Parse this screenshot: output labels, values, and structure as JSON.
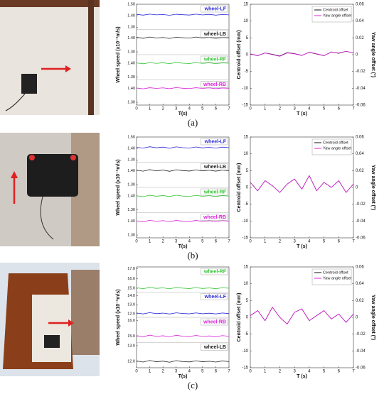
{
  "chart_data": [
    {
      "type": "strip-line",
      "ylabel": "Wheel speed (x10⁻²m/s)",
      "xlabel": "T(s)",
      "xlim": [
        0,
        7
      ],
      "xticks": [
        0,
        1,
        2,
        3,
        4,
        5,
        6,
        7
      ],
      "x": [
        0,
        0.5,
        1,
        1.5,
        2,
        2.5,
        3,
        3.5,
        4,
        4.5,
        5,
        5.5,
        6,
        6.5,
        7
      ],
      "strips": [
        {
          "name": "wheel-LF",
          "color": "#2a2ad8",
          "ylim": [
            1.28,
            1.5
          ],
          "yticks": [
            {
              "value": 1.5,
              "label": "1.50"
            },
            {
              "value": 1.4,
              "label": "1.40"
            },
            {
              "value": 1.3,
              "label": "1.30"
            }
          ],
          "values": [
            1.412,
            1.405,
            1.414,
            1.408,
            1.411,
            1.404,
            1.413,
            1.409,
            1.406,
            1.414,
            1.407,
            1.412,
            1.405,
            1.411,
            1.408
          ]
        },
        {
          "name": "wheel-LB",
          "color": "#222222",
          "ylim": [
            1.28,
            1.46
          ],
          "yticks": [
            {
              "value": 1.4,
              "label": "1.40"
            },
            {
              "value": 1.3,
              "label": "1.30"
            }
          ],
          "values": [
            1.404,
            1.397,
            1.406,
            1.399,
            1.403,
            1.396,
            1.405,
            1.401,
            1.398,
            1.406,
            1.399,
            1.404,
            1.397,
            1.403,
            1.4
          ]
        },
        {
          "name": "wheel-RF",
          "color": "#33c433",
          "ylim": [
            1.28,
            1.46
          ],
          "yticks": [
            {
              "value": 1.4,
              "label": "1.40"
            },
            {
              "value": 1.3,
              "label": "1.30"
            }
          ],
          "values": [
            1.401,
            1.395,
            1.403,
            1.398,
            1.402,
            1.396,
            1.404,
            1.399,
            1.397,
            1.403,
            1.398,
            1.402,
            1.396,
            1.401,
            1.399
          ]
        },
        {
          "name": "wheel-RB",
          "color": "#d822d8",
          "ylim": [
            1.28,
            1.46
          ],
          "yticks": [
            {
              "value": 1.4,
              "label": "1.40"
            },
            {
              "value": 1.3,
              "label": "1.30"
            }
          ],
          "values": [
            1.402,
            1.396,
            1.404,
            1.399,
            1.403,
            1.397,
            1.405,
            1.4,
            1.398,
            1.404,
            1.399,
            1.403,
            1.397,
            1.402,
            1.4
          ]
        }
      ]
    },
    {
      "type": "dual-line",
      "ylabel": "Centroid offset (mm)",
      "y2label": "Yaw angle offset (°)",
      "xlabel": "T (s)",
      "xlim": [
        0,
        7
      ],
      "xticks": [
        0,
        1,
        2,
        3,
        4,
        5,
        6,
        7
      ],
      "ylim": [
        -15,
        15
      ],
      "yticks": [
        -15,
        -10,
        -5,
        0,
        5,
        10,
        15
      ],
      "y2lim": [
        -0.06,
        0.06
      ],
      "y2ticks": [
        -0.06,
        -0.04,
        -0.02,
        0,
        0.02,
        0.04,
        0.06
      ],
      "x": [
        0,
        0.5,
        1,
        1.5,
        2,
        2.5,
        3,
        3.5,
        4,
        4.5,
        5,
        5.5,
        6,
        6.5,
        7
      ],
      "series": [
        {
          "name": "Centroid offset",
          "color": "#111111",
          "values": [
            0.2,
            -0.3,
            0.5,
            0.1,
            -0.4,
            0.6,
            0.3,
            -0.2,
            0.7,
            0.2,
            -0.3,
            0.8,
            0.4,
            1.0,
            0.5
          ]
        },
        {
          "name": "Yaw angle offset",
          "color": "#e020e0",
          "axis": "y2",
          "values": [
            0.001,
            -0.001,
            0.002,
            0,
            -0.002,
            0.002,
            0.001,
            -0.001,
            0.003,
            0.001,
            -0.001,
            0.003,
            0.002,
            0.004,
            0.002
          ]
        }
      ]
    },
    {
      "type": "strip-line",
      "ylabel": "Wheel speed (x10⁻²m/s)",
      "xlabel": "T(s)",
      "xlim": [
        0,
        7
      ],
      "xticks": [
        0,
        1,
        2,
        3,
        4,
        5,
        6,
        7
      ],
      "x": [
        0,
        0.5,
        1,
        1.5,
        2,
        2.5,
        3,
        3.5,
        4,
        4.5,
        5,
        5.5,
        6,
        6.5,
        7
      ],
      "strips": [
        {
          "name": "wheel-LF",
          "color": "#2a2ad8",
          "ylim": [
            1.28,
            1.5
          ],
          "yticks": [
            {
              "value": 1.5,
              "label": "1.50"
            },
            {
              "value": 1.4,
              "label": "1.40"
            },
            {
              "value": 1.3,
              "label": "1.30"
            }
          ],
          "values": [
            1.41,
            1.403,
            1.415,
            1.406,
            1.412,
            1.402,
            1.414,
            1.407,
            1.404,
            1.413,
            1.405,
            1.411,
            1.403,
            1.412,
            1.407
          ]
        },
        {
          "name": "wheel-LB",
          "color": "#222222",
          "ylim": [
            1.28,
            1.46
          ],
          "yticks": [
            {
              "value": 1.4,
              "label": "1.40"
            },
            {
              "value": 1.3,
              "label": "1.30"
            }
          ],
          "values": [
            1.403,
            1.396,
            1.407,
            1.398,
            1.404,
            1.395,
            1.406,
            1.4,
            1.397,
            1.405,
            1.398,
            1.403,
            1.396,
            1.404,
            1.399
          ]
        },
        {
          "name": "wheel-RF",
          "color": "#33c433",
          "ylim": [
            1.28,
            1.46
          ],
          "yticks": [
            {
              "value": 1.4,
              "label": "1.40"
            },
            {
              "value": 1.3,
              "label": "1.30"
            }
          ],
          "values": [
            1.4,
            1.394,
            1.404,
            1.397,
            1.402,
            1.395,
            1.405,
            1.398,
            1.396,
            1.403,
            1.397,
            1.401,
            1.395,
            1.402,
            1.398
          ]
        },
        {
          "name": "wheel-RB",
          "color": "#d822d8",
          "ylim": [
            1.28,
            1.46
          ],
          "yticks": [
            {
              "value": 1.4,
              "label": "1.40"
            },
            {
              "value": 1.3,
              "label": "1.30"
            }
          ],
          "values": [
            1.401,
            1.395,
            1.405,
            1.398,
            1.403,
            1.396,
            1.404,
            1.399,
            1.397,
            1.404,
            1.398,
            1.402,
            1.396,
            1.403,
            1.399
          ]
        }
      ]
    },
    {
      "type": "dual-line",
      "ylabel": "Centroid offset (mm)",
      "y2label": "Yaw angle offset (°)",
      "xlabel": "T (s)",
      "xlim": [
        0,
        7
      ],
      "xticks": [
        0,
        1,
        2,
        3,
        4,
        5,
        6,
        7
      ],
      "ylim": [
        -15,
        15
      ],
      "yticks": [
        -15,
        -10,
        -5,
        0,
        5,
        10,
        15
      ],
      "y2lim": [
        -0.06,
        0.06
      ],
      "y2ticks": [
        -0.06,
        -0.04,
        -0.02,
        0,
        0.02,
        0.04,
        0.06
      ],
      "x": [
        0,
        0.5,
        1,
        1.5,
        2,
        2.5,
        3,
        3.5,
        4,
        4.5,
        5,
        5.5,
        6,
        6.5,
        7
      ],
      "series": [
        {
          "name": "Centroid offset",
          "color": "#111111",
          "values": [
            1.5,
            -1,
            2,
            0.5,
            -1.5,
            1,
            2.5,
            -0.5,
            3.5,
            -1,
            1.5,
            0,
            2,
            -1.5,
            1
          ]
        },
        {
          "name": "Yaw angle offset",
          "color": "#e020e0",
          "axis": "y2",
          "values": [
            0.006,
            -0.004,
            0.008,
            0.002,
            -0.006,
            0.004,
            0.01,
            -0.002,
            0.014,
            -0.004,
            0.006,
            0,
            0.008,
            -0.006,
            0.004
          ]
        }
      ]
    },
    {
      "type": "strip-line",
      "ylabel": "Wheel speed (x10⁻²m/s)",
      "xlabel": "T(s)",
      "xlim": [
        0,
        7
      ],
      "xticks": [
        0,
        1,
        2,
        3,
        4,
        5,
        6,
        7
      ],
      "x": [
        0,
        0.5,
        1,
        1.5,
        2,
        2.5,
        3,
        3.5,
        4,
        4.5,
        5,
        5.5,
        6,
        6.5,
        7
      ],
      "strips": [
        {
          "name": "wheel-RF",
          "color": "#33c433",
          "ylim": [
            14.6,
            17.2
          ],
          "yticks": [
            {
              "value": 17,
              "label": "17.0"
            },
            {
              "value": 16,
              "label": "16.0"
            },
            {
              "value": 15,
              "label": "15.0"
            }
          ],
          "values": [
            15.05,
            14.96,
            15.08,
            14.99,
            15.04,
            14.95,
            15.07,
            15.01,
            14.97,
            15.06,
            14.98,
            15.03,
            14.96,
            15.05,
            15.0
          ]
        },
        {
          "name": "wheel-LF",
          "color": "#2a2ad8",
          "ylim": [
            11.6,
            14.4
          ],
          "yticks": [
            {
              "value": 14,
              "label": "14.0"
            },
            {
              "value": 13,
              "label": "13.0"
            },
            {
              "value": 12,
              "label": "12.0"
            }
          ],
          "values": [
            12.08,
            11.98,
            12.12,
            12.01,
            12.07,
            11.97,
            12.1,
            12.03,
            11.99,
            12.09,
            12.0,
            12.06,
            11.98,
            12.08,
            12.02
          ]
        },
        {
          "name": "wheel-RB",
          "color": "#d822d8",
          "ylim": [
            14.6,
            16.2
          ],
          "yticks": [
            {
              "value": 16,
              "label": "16.0"
            },
            {
              "value": 15,
              "label": "15.0"
            }
          ],
          "values": [
            15.04,
            14.97,
            15.07,
            14.99,
            15.03,
            14.96,
            15.06,
            15.0,
            14.98,
            15.05,
            14.99,
            15.02,
            14.97,
            15.04,
            15.0
          ]
        },
        {
          "name": "wheel-LB",
          "color": "#222222",
          "ylim": [
            11.6,
            13.2
          ],
          "yticks": [
            {
              "value": 13,
              "label": "13.0"
            },
            {
              "value": 12,
              "label": "12.0"
            }
          ],
          "values": [
            12.03,
            11.96,
            12.06,
            11.98,
            12.02,
            11.95,
            12.05,
            11.99,
            11.97,
            12.04,
            11.98,
            12.01,
            11.96,
            12.03,
            11.99
          ]
        }
      ]
    },
    {
      "type": "dual-line",
      "ylabel": "Centroid offset (mm)",
      "y2label": "Yaw angle offset (°)",
      "xlabel": "T (s)",
      "xlim": [
        0,
        7
      ],
      "xticks": [
        0,
        1,
        2,
        3,
        4,
        5,
        6,
        7
      ],
      "ylim": [
        -15,
        15
      ],
      "yticks": [
        -15,
        -10,
        -5,
        0,
        5,
        10,
        15
      ],
      "y2lim": [
        -0.06,
        0.06
      ],
      "y2ticks": [
        -0.06,
        -0.04,
        -0.02,
        0,
        0.02,
        0.04,
        0.06
      ],
      "x": [
        0,
        0.5,
        1,
        1.5,
        2,
        2.5,
        3,
        3.5,
        4,
        4.5,
        5,
        5.5,
        6,
        6.5,
        7
      ],
      "series": [
        {
          "name": "Centroid offset",
          "color": "#111111",
          "values": [
            0.5,
            2,
            -1,
            3,
            0,
            -2,
            1.5,
            2.5,
            -1,
            0.5,
            2,
            -0.5,
            1,
            -1.5,
            1
          ]
        },
        {
          "name": "Yaw angle offset",
          "color": "#e020e0",
          "axis": "y2",
          "values": [
            0.002,
            0.008,
            -0.004,
            0.012,
            0,
            -0.008,
            0.006,
            0.01,
            -0.004,
            0.002,
            0.008,
            -0.002,
            0.004,
            -0.006,
            0.004
          ]
        }
      ]
    }
  ],
  "panel_labels": [
    "(a)",
    "(b)",
    "(c)"
  ]
}
